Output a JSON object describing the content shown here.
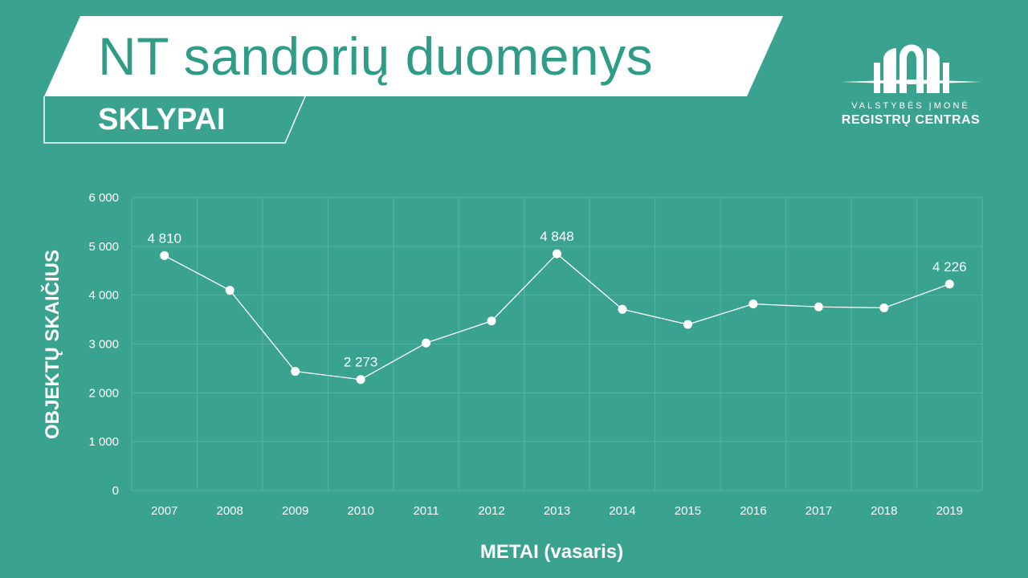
{
  "header": {
    "title": "NT sandorių duomenys",
    "subtitle": "SKLYPAI"
  },
  "logo": {
    "icon": "building-arch-icon",
    "line1": "VALSTYBĖS ĮMONĖ",
    "line2": "REGISTRŲ CENTRAS"
  },
  "colors": {
    "background": "#3aa38f",
    "banner": "#ffffff",
    "title_text": "#2f9c87",
    "series": "#ffffff"
  },
  "chart_data": {
    "type": "line",
    "title": "",
    "xlabel": "METAI (vasaris)",
    "ylabel": "OBJEKTŲ SKAIČIUS",
    "ylim": [
      0,
      6000
    ],
    "yticks": [
      {
        "value": 0,
        "label": "0"
      },
      {
        "value": 1000,
        "label": "1 000"
      },
      {
        "value": 2000,
        "label": "2 000"
      },
      {
        "value": 3000,
        "label": "3 000"
      },
      {
        "value": 4000,
        "label": "4 000"
      },
      {
        "value": 5000,
        "label": "5 000"
      },
      {
        "value": 6000,
        "label": "6 000"
      }
    ],
    "grid": true,
    "legend": "none",
    "categories": [
      "2007",
      "2008",
      "2009",
      "2010",
      "2011",
      "2012",
      "2013",
      "2014",
      "2015",
      "2016",
      "2017",
      "2018",
      "2019"
    ],
    "series": [
      {
        "values": [
          4810,
          4100,
          2440,
          2273,
          3020,
          3470,
          4848,
          3710,
          3400,
          3820,
          3760,
          3740,
          4226
        ]
      }
    ],
    "data_labels": [
      {
        "index": 0,
        "text": "4 810"
      },
      {
        "index": 3,
        "text": "2 273"
      },
      {
        "index": 6,
        "text": "4 848"
      },
      {
        "index": 12,
        "text": "4 226"
      }
    ]
  }
}
